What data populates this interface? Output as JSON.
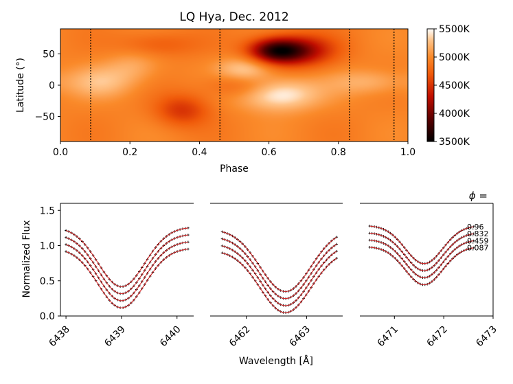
{
  "chart_data": [
    {
      "type": "heatmap",
      "title": "LQ Hya, Dec. 2012",
      "xlabel": "Phase",
      "ylabel": "Latitude (°)",
      "xlim": [
        0.0,
        1.0
      ],
      "ylim": [
        -90,
        90
      ],
      "xticks": [
        "0.0",
        "0.2",
        "0.4",
        "0.6",
        "0.8",
        "1.0"
      ],
      "yticks": [
        "50",
        "0",
        "−50"
      ],
      "colorbar": {
        "label_min": "3500K",
        "ticks": [
          "5500K",
          "5000K",
          "4500K",
          "4000K",
          "3500K"
        ],
        "range": [
          3500,
          5500
        ]
      },
      "base_temperature": 4950,
      "observed_phases": [
        0.087,
        0.459,
        0.832,
        0.96
      ],
      "features": [
        {
          "kind": "cool spot",
          "phase": 0.62,
          "latitude": 55,
          "temperature": 3800
        },
        {
          "kind": "cool spot",
          "phase": 0.7,
          "latitude": 55,
          "temperature": 4300
        },
        {
          "kind": "cool spot",
          "phase": 0.28,
          "latitude": 65,
          "temperature": 4700
        },
        {
          "kind": "cool spot",
          "phase": 0.35,
          "latitude": -40,
          "temperature": 4500
        },
        {
          "kind": "cool spot",
          "phase": 0.51,
          "latitude": 0,
          "temperature": 4700
        },
        {
          "kind": "hot spot",
          "phase": 0.63,
          "latitude": -15,
          "temperature": 5500
        },
        {
          "kind": "hot spot",
          "phase": 0.53,
          "latitude": 25,
          "temperature": 5350
        },
        {
          "kind": "hot spot",
          "phase": 0.12,
          "latitude": 5,
          "temperature": 5250
        },
        {
          "kind": "hot spot",
          "phase": 0.89,
          "latitude": 5,
          "temperature": 5200
        },
        {
          "kind": "hot spot",
          "phase": 0.21,
          "latitude": 30,
          "temperature": 5150
        }
      ]
    },
    {
      "type": "line",
      "ylabel": "Normalized Flux",
      "xlabel": "Wavelength [Å]",
      "ylim": [
        0.0,
        1.6
      ],
      "yticks": [
        "0.0",
        "0.5",
        "1.0",
        "1.5"
      ],
      "phase_label": "ϕ =",
      "phases": [
        "0.96",
        "0.832",
        "0.459",
        "0.087"
      ],
      "offsets": [
        0.3,
        0.2,
        0.1,
        0.0
      ],
      "panels": [
        {
          "xlim": [
            6437.9,
            6440.3
          ],
          "xticks": [
            "6438",
            "6439",
            "6440"
          ],
          "line_range": [
            6438.0,
            6440.2
          ],
          "center": 6439.0,
          "width": 0.42,
          "continuum": 0.965,
          "depth": 0.88
        },
        {
          "xlim": [
            6461.4,
            6463.6
          ],
          "xticks": [
            "6462",
            "6463"
          ],
          "line_range": [
            6461.6,
            6463.5
          ],
          "center": 6462.65,
          "width": 0.42,
          "continuum": 0.935,
          "depth": 0.95
        },
        {
          "xlim": [
            6470.3,
            6473.0
          ],
          "xticks": [
            "6471",
            "6472",
            "6473"
          ],
          "line_range": [
            6470.5,
            6472.6
          ],
          "center": 6471.6,
          "width": 0.38,
          "continuum": 0.985,
          "depth": 0.55
        }
      ]
    }
  ]
}
